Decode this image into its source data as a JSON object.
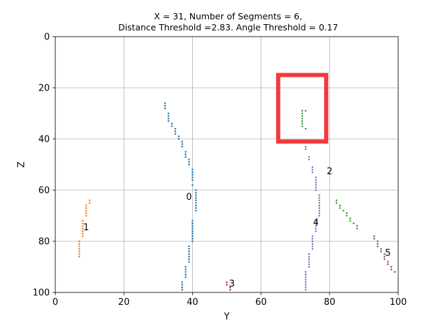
{
  "chart_data": {
    "type": "scatter",
    "title_line1": "X = 31, Number of Segments = 6,",
    "title_line2": "Distance Threshold =2.83. Angle Threshold = 0.17",
    "xlabel": "Y",
    "ylabel": "Z",
    "xlim": [
      0,
      100
    ],
    "ylim": [
      100,
      0
    ],
    "y_inverted": true,
    "grid": true,
    "xticks": [
      0,
      20,
      40,
      60,
      80,
      100
    ],
    "yticks": [
      0,
      20,
      40,
      60,
      80,
      100
    ],
    "xtick_labels": [
      "0",
      "20",
      "40",
      "60",
      "80",
      "100"
    ],
    "ytick_labels": [
      "0",
      "20",
      "40",
      "60",
      "80",
      "100"
    ],
    "series": [
      {
        "label": "0",
        "label_at": [
          39,
          62.5
        ],
        "color": "#1f77b4",
        "points": [
          [
            32,
            26
          ],
          [
            32,
            27
          ],
          [
            32,
            28
          ],
          [
            33,
            30
          ],
          [
            33,
            31
          ],
          [
            33,
            32
          ],
          [
            33,
            33
          ],
          [
            34,
            34
          ],
          [
            34,
            35
          ],
          [
            35,
            36
          ],
          [
            35,
            37
          ],
          [
            35,
            38
          ],
          [
            36,
            39
          ],
          [
            36,
            40
          ],
          [
            37,
            41
          ],
          [
            37,
            42
          ],
          [
            37,
            43
          ],
          [
            38,
            45
          ],
          [
            38,
            46
          ],
          [
            38,
            47
          ],
          [
            39,
            48
          ],
          [
            39,
            49
          ],
          [
            39,
            50
          ],
          [
            40,
            52
          ],
          [
            40,
            53
          ],
          [
            40,
            54
          ],
          [
            40,
            55
          ],
          [
            40,
            56
          ],
          [
            40,
            58
          ],
          [
            41,
            60
          ],
          [
            41,
            61
          ],
          [
            41,
            62
          ],
          [
            41,
            63
          ],
          [
            41,
            64
          ],
          [
            41,
            65
          ],
          [
            41,
            66
          ],
          [
            41,
            67
          ],
          [
            41,
            68
          ],
          [
            40,
            72
          ],
          [
            40,
            73
          ],
          [
            40,
            74
          ],
          [
            40,
            75
          ],
          [
            40,
            76
          ],
          [
            40,
            77
          ],
          [
            40,
            78
          ],
          [
            40,
            79
          ],
          [
            40,
            80
          ],
          [
            39,
            82
          ],
          [
            39,
            83
          ],
          [
            39,
            84
          ],
          [
            39,
            85
          ],
          [
            39,
            86
          ],
          [
            39,
            87
          ],
          [
            39,
            88
          ],
          [
            38,
            90
          ],
          [
            38,
            91
          ],
          [
            38,
            92
          ],
          [
            38,
            93
          ],
          [
            38,
            94
          ],
          [
            37,
            96
          ],
          [
            37,
            97
          ],
          [
            37,
            98
          ],
          [
            37,
            99
          ]
        ]
      },
      {
        "label": "1",
        "label_at": [
          9,
          74.5
        ],
        "color": "#ff7f0e",
        "points": [
          [
            10,
            64
          ],
          [
            10,
            65
          ],
          [
            9,
            66
          ],
          [
            9,
            67
          ],
          [
            9,
            68
          ],
          [
            9,
            69
          ],
          [
            9,
            70
          ],
          [
            8,
            72
          ],
          [
            8,
            73
          ],
          [
            8,
            74
          ],
          [
            8,
            75
          ],
          [
            8,
            76
          ],
          [
            8,
            77
          ],
          [
            8,
            78
          ],
          [
            7,
            80
          ],
          [
            7,
            81
          ],
          [
            7,
            82
          ],
          [
            7,
            83
          ],
          [
            7,
            84
          ],
          [
            7,
            85
          ],
          [
            7,
            86
          ]
        ]
      },
      {
        "label": "2",
        "label_at": [
          80,
          52.5
        ],
        "color": "#2ca02c",
        "points": [
          [
            72,
            29
          ],
          [
            73,
            29
          ],
          [
            72,
            30
          ],
          [
            72,
            31
          ],
          [
            72,
            32
          ],
          [
            72,
            33
          ],
          [
            72,
            34
          ],
          [
            72,
            35
          ],
          [
            73,
            36
          ],
          [
            82,
            64
          ],
          [
            82,
            65
          ],
          [
            83,
            66
          ],
          [
            83,
            67
          ],
          [
            84,
            68
          ],
          [
            85,
            69
          ],
          [
            85,
            70
          ],
          [
            86,
            71
          ],
          [
            86,
            72
          ],
          [
            87,
            73
          ],
          [
            88,
            74
          ],
          [
            88,
            75
          ]
        ]
      },
      {
        "label": "3",
        "label_at": [
          51.5,
          96.5
        ],
        "color": "#d62728",
        "points": [
          [
            50,
            96
          ],
          [
            50,
            97
          ],
          [
            51,
            98
          ],
          [
            51,
            99
          ]
        ]
      },
      {
        "label": "4",
        "label_at": [
          76,
          72.5
        ],
        "color": "#9467bd",
        "points": [
          [
            73,
            43
          ],
          [
            73,
            44
          ],
          [
            74,
            47
          ],
          [
            74,
            48
          ],
          [
            75,
            51
          ],
          [
            75,
            52
          ],
          [
            75,
            53
          ],
          [
            76,
            55
          ],
          [
            76,
            56
          ],
          [
            76,
            57
          ],
          [
            76,
            58
          ],
          [
            76,
            59
          ],
          [
            76,
            60
          ],
          [
            77,
            62
          ],
          [
            77,
            63
          ],
          [
            77,
            64
          ],
          [
            77,
            65
          ],
          [
            77,
            66
          ],
          [
            77,
            67
          ],
          [
            77,
            68
          ],
          [
            77,
            69
          ],
          [
            77,
            70
          ],
          [
            76,
            72
          ],
          [
            76,
            73
          ],
          [
            76,
            74
          ],
          [
            76,
            75
          ],
          [
            76,
            76
          ],
          [
            75,
            78
          ],
          [
            75,
            79
          ],
          [
            75,
            80
          ],
          [
            75,
            81
          ],
          [
            75,
            82
          ],
          [
            75,
            83
          ],
          [
            74,
            85
          ],
          [
            74,
            86
          ],
          [
            74,
            87
          ],
          [
            74,
            88
          ],
          [
            74,
            89
          ],
          [
            74,
            90
          ],
          [
            73,
            92
          ],
          [
            73,
            93
          ],
          [
            73,
            94
          ],
          [
            73,
            95
          ],
          [
            73,
            96
          ],
          [
            73,
            97
          ],
          [
            73,
            98
          ],
          [
            73,
            99
          ]
        ]
      },
      {
        "label": "5",
        "label_at": [
          97,
          84.5
        ],
        "color": "#8c564b",
        "points": [
          [
            93,
            78
          ],
          [
            93,
            79
          ],
          [
            94,
            80
          ],
          [
            94,
            81
          ],
          [
            94,
            82
          ],
          [
            95,
            83
          ],
          [
            95,
            84
          ],
          [
            96,
            85
          ],
          [
            96,
            86
          ],
          [
            96,
            87
          ],
          [
            97,
            88
          ],
          [
            97,
            89
          ],
          [
            98,
            90
          ],
          [
            98,
            91
          ],
          [
            99,
            92
          ]
        ]
      }
    ],
    "highlight_box": {
      "y_range": [
        65,
        79
      ],
      "z_range": [
        15,
        41
      ],
      "color": "#f03a3a"
    }
  }
}
